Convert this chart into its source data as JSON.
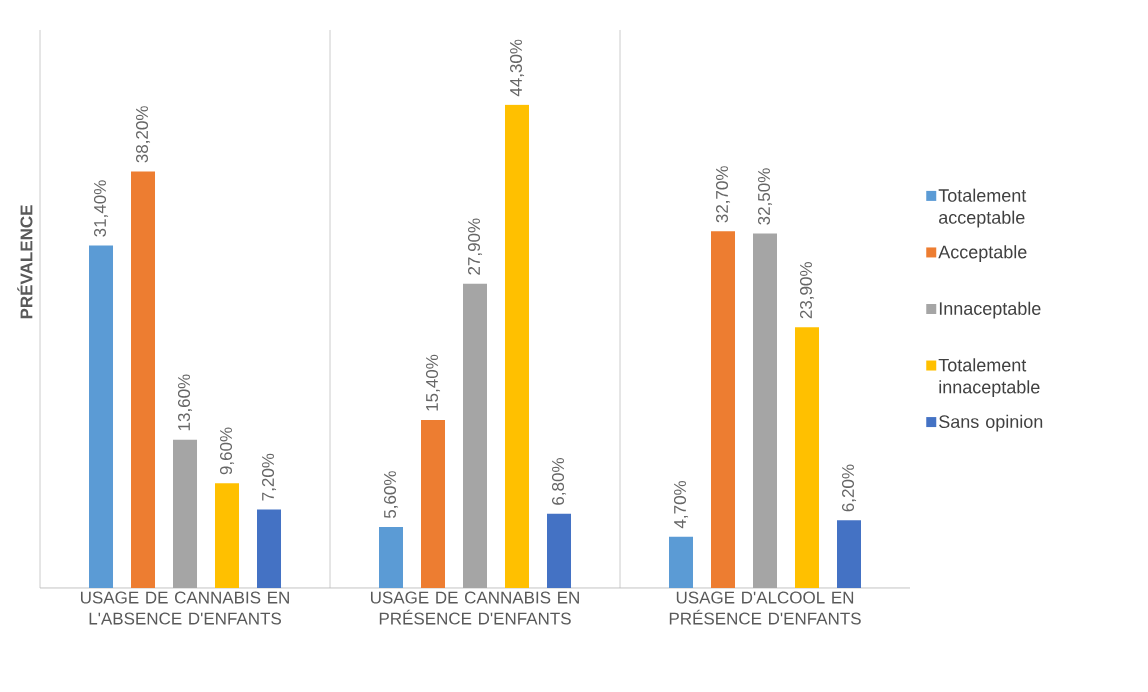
{
  "chart_data": {
    "type": "bar",
    "ylabel": "PRÉVALENCE",
    "categories": [
      "USAGE DE CANNABIS EN L'ABSENCE D'ENFANTS",
      "USAGE DE CANNABIS EN PRÉSENCE D'ENFANTS",
      "USAGE D'ALCOOL EN PRÉSENCE D'ENFANTS"
    ],
    "series": [
      {
        "name": "Totalement acceptable",
        "color": "#5b9bd5",
        "values": [
          31.4,
          5.6,
          4.7
        ],
        "value_labels": [
          "31,40%",
          "5,60%",
          "4,70%"
        ]
      },
      {
        "name": "Acceptable",
        "color": "#ed7d31",
        "values": [
          38.2,
          15.4,
          32.7
        ],
        "value_labels": [
          "38,20%",
          "15,40%",
          "32,70%"
        ]
      },
      {
        "name": "Innaceptable",
        "color": "#a5a5a5",
        "values": [
          13.6,
          27.9,
          32.5
        ],
        "value_labels": [
          "13,60%",
          "27,90%",
          "32,50%"
        ]
      },
      {
        "name": "Totalement innaceptable",
        "color": "#ffc000",
        "values": [
          9.6,
          44.3,
          23.9
        ],
        "value_labels": [
          "9,60%",
          "44,30%",
          "23,90%"
        ]
      },
      {
        "name": "Sans opinion",
        "color": "#4472c4",
        "values": [
          7.2,
          6.8,
          6.2
        ],
        "value_labels": [
          "7,20%",
          "6,80%",
          "6,20%"
        ]
      }
    ],
    "grid": "x",
    "legend": "right"
  }
}
